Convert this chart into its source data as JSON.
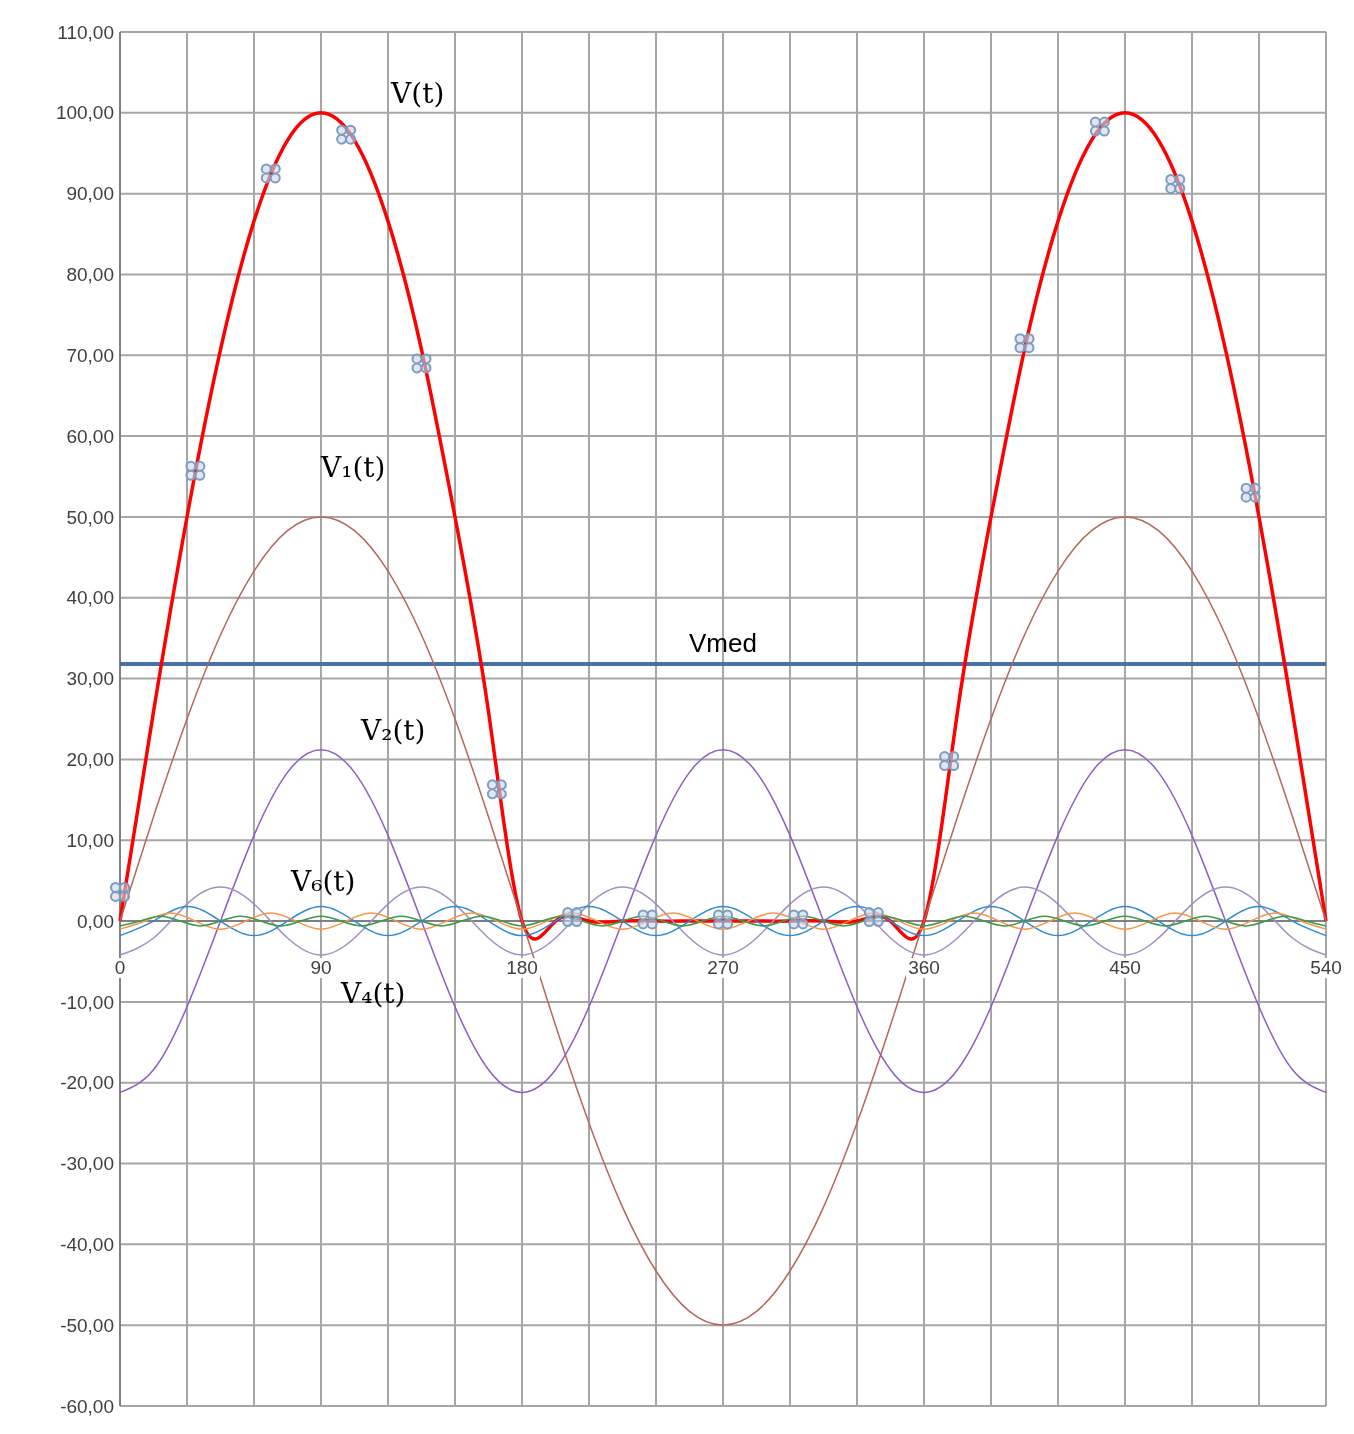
{
  "chart_data": {
    "type": "line",
    "xlim": [
      0,
      540
    ],
    "ylim": [
      -60,
      110
    ],
    "xticks": [
      0,
      {
        "value": 30,
        "label": null
      },
      {
        "value": 60,
        "label": null
      },
      90,
      {
        "value": 120,
        "label": null
      },
      {
        "value": 150,
        "label": null
      },
      180,
      {
        "value": 210,
        "label": null
      },
      {
        "value": 240,
        "label": null
      },
      270,
      {
        "value": 300,
        "label": null
      },
      {
        "value": 330,
        "label": null
      },
      360,
      {
        "value": 390,
        "label": null
      },
      {
        "value": 420,
        "label": null
      },
      450,
      {
        "value": 480,
        "label": null
      },
      {
        "value": 510,
        "label": null
      },
      540
    ],
    "yticks": [
      {
        "value": -60,
        "label": "-60,00"
      },
      {
        "value": -50,
        "label": "-50,00"
      },
      {
        "value": -40,
        "label": "-40,00"
      },
      {
        "value": -30,
        "label": "-30,00"
      },
      {
        "value": -20,
        "label": "-20,00"
      },
      {
        "value": -10,
        "label": "-10,00"
      },
      {
        "value": 0,
        "label": "0,00"
      },
      {
        "value": 10,
        "label": "10,00"
      },
      {
        "value": 20,
        "label": "20,00"
      },
      {
        "value": 30,
        "label": "30,00"
      },
      {
        "value": 40,
        "label": "40,00"
      },
      {
        "value": 50,
        "label": "50,00"
      },
      {
        "value": 60,
        "label": "60,00"
      },
      {
        "value": 70,
        "label": "70,00"
      },
      {
        "value": 80,
        "label": "80,00"
      },
      {
        "value": 90,
        "label": "90,00"
      },
      {
        "value": 100,
        "label": "100,00"
      },
      {
        "value": 110,
        "label": "110,00"
      }
    ],
    "grid": true,
    "legend": false,
    "marker": "none",
    "line_style": "solid",
    "x": [
      0,
      15,
      30,
      45,
      60,
      75,
      90,
      105,
      120,
      135,
      150,
      165,
      180,
      195,
      210,
      225,
      240,
      255,
      270,
      285,
      300,
      315,
      330,
      345,
      360,
      375,
      390,
      405,
      420,
      435,
      450,
      465,
      480,
      495,
      510,
      525,
      540
    ],
    "series": [
      {
        "name": "V(t)",
        "color": "#ff0000",
        "values": [
          0,
          25.9,
          50,
          70.7,
          86.6,
          96.6,
          100,
          96.6,
          86.6,
          70.7,
          50,
          25.9,
          0,
          0,
          0,
          0,
          0,
          0,
          0,
          0,
          0,
          0,
          0,
          0,
          0,
          25.9,
          50,
          70.7,
          86.6,
          96.6,
          100,
          96.6,
          86.6,
          70.7,
          50,
          25.9,
          0
        ]
      },
      {
        "name": "V₁(t)",
        "color": "#b5675c",
        "values": [
          0,
          12.9,
          25,
          35.4,
          43.3,
          48.3,
          50,
          48.3,
          43.3,
          35.4,
          25,
          12.9,
          0,
          -12.9,
          -25,
          -35.4,
          -43.3,
          -48.3,
          -50,
          -48.3,
          -43.3,
          -35.4,
          -25,
          -12.9,
          0,
          12.9,
          25,
          35.4,
          43.3,
          48.3,
          50,
          48.3,
          43.3,
          35.4,
          25,
          12.9,
          0
        ]
      },
      {
        "name": "V₂(t)",
        "color": "#8e5cc4",
        "values": [
          -21.2,
          -18.4,
          -10.6,
          0,
          10.6,
          18.4,
          21.2,
          18.4,
          10.6,
          0,
          -10.6,
          -18.4,
          -21.2,
          -18.4,
          -10.6,
          0,
          10.6,
          18.4,
          21.2,
          18.4,
          10.6,
          0,
          -10.6,
          -18.4,
          -21.2,
          -18.4,
          -10.6,
          0,
          10.6,
          18.4,
          21.2,
          18.4,
          10.6,
          0,
          -10.6,
          -18.4,
          -21.2
        ]
      },
      {
        "name": "V₄(t)",
        "color": "#a48fc4",
        "values": [
          -4.2,
          -2.1,
          2.1,
          4.2,
          2.1,
          -2.1,
          -4.2,
          -2.1,
          2.1,
          4.2,
          2.1,
          -2.1,
          -4.2,
          -2.1,
          2.1,
          4.2,
          2.1,
          -2.1,
          -4.2,
          -2.1,
          2.1,
          4.2,
          2.1,
          -2.1,
          -4.2,
          -2.1,
          2.1,
          4.2,
          2.1,
          -2.1,
          -4.2,
          -2.1,
          2.1,
          4.2,
          2.1,
          -2.1,
          -4.2
        ]
      },
      {
        "name": "V₆(t)",
        "color": "#2e8bd6",
        "values": [
          -1.8,
          0,
          1.8,
          0,
          -1.8,
          0,
          1.8,
          0,
          -1.8,
          0,
          1.8,
          0,
          -1.8,
          0,
          1.8,
          0,
          -1.8,
          0,
          1.8,
          0,
          -1.8,
          0,
          1.8,
          0,
          -1.8,
          0,
          1.8,
          0,
          -1.8,
          0,
          1.8,
          0,
          -1.8,
          0,
          1.8,
          0,
          -1.8
        ]
      },
      {
        "color": "#f79646",
        "x": [
          0,
          11.25,
          22.5,
          33.75,
          45,
          56.25,
          67.5,
          78.75,
          90,
          101.25,
          112.5,
          123.75,
          135,
          146.25,
          157.5,
          168.75,
          180,
          191.25,
          202.5,
          213.75,
          225,
          236.25,
          247.5,
          258.75,
          270,
          281.25,
          292.5,
          303.75,
          315,
          326.25,
          337.5,
          348.75,
          360,
          371.25,
          382.5,
          393.75,
          405,
          416.25,
          427.5,
          438.75,
          450,
          461.25,
          472.5,
          483.75,
          495,
          506.25,
          517.5,
          528.75,
          540
        ],
        "values": [
          -1,
          0,
          1,
          0,
          -1,
          0,
          1,
          0,
          -1,
          0,
          1,
          0,
          -1,
          0,
          1,
          0,
          -1,
          0,
          1,
          0,
          -1,
          0,
          1,
          0,
          -1,
          0,
          1,
          0,
          -1,
          0,
          1,
          0,
          -1,
          0,
          1,
          0,
          -1,
          0,
          1,
          0,
          -1,
          0,
          1,
          0,
          -1,
          0,
          1,
          0,
          -1
        ]
      },
      {
        "color": "#3a9a4a",
        "x": [
          0,
          9,
          18,
          27,
          36,
          45,
          54,
          63,
          72,
          81,
          90,
          99,
          108,
          117,
          126,
          135,
          144,
          153,
          162,
          171,
          180,
          189,
          198,
          207,
          216,
          225,
          234,
          243,
          252,
          261,
          270,
          279,
          288,
          297,
          306,
          315,
          324,
          333,
          342,
          351,
          360,
          369,
          378,
          387,
          396,
          405,
          414,
          423,
          432,
          441,
          450,
          459,
          468,
          477,
          486,
          495,
          504,
          513,
          522,
          531,
          540
        ],
        "values": [
          -0.6,
          0,
          0.6,
          0,
          -0.6,
          0,
          0.6,
          0,
          -0.6,
          0,
          0.6,
          0,
          -0.6,
          0,
          0.6,
          0,
          -0.6,
          0,
          0.6,
          0,
          -0.6,
          0,
          0.6,
          0,
          -0.6,
          0,
          0.6,
          0,
          -0.6,
          0,
          0.6,
          0,
          -0.6,
          0,
          0.6,
          0,
          -0.6,
          0,
          0.6,
          0,
          -0.6,
          0,
          0.6,
          0,
          -0.6,
          0,
          0.6,
          0,
          -0.6,
          0,
          0.6,
          0,
          -0.6,
          0,
          0.6,
          0,
          -0.6,
          0,
          0.6,
          0,
          -0.6
        ]
      },
      {
        "type": "scatter",
        "marker": "cross",
        "color": "#7d9cc0",
        "x": [
          0,
          33.75,
          67.5,
          101.25,
          135,
          168.75,
          202.5,
          236.25,
          270,
          303.75,
          337.5,
          371.25,
          405,
          438.75,
          472.5,
          506.25
        ],
        "values": [
          3.6,
          55.7,
          92.5,
          97.3,
          69,
          16.3,
          0.5,
          0.2,
          0.2,
          0.2,
          0.5,
          19.8,
          71.5,
          98.3,
          91.2,
          53
        ]
      }
    ],
    "ref_lines": [
      {
        "axis": "y",
        "value": 31.8,
        "label": "Vmed",
        "color": "#4a6fa5"
      }
    ]
  }
}
